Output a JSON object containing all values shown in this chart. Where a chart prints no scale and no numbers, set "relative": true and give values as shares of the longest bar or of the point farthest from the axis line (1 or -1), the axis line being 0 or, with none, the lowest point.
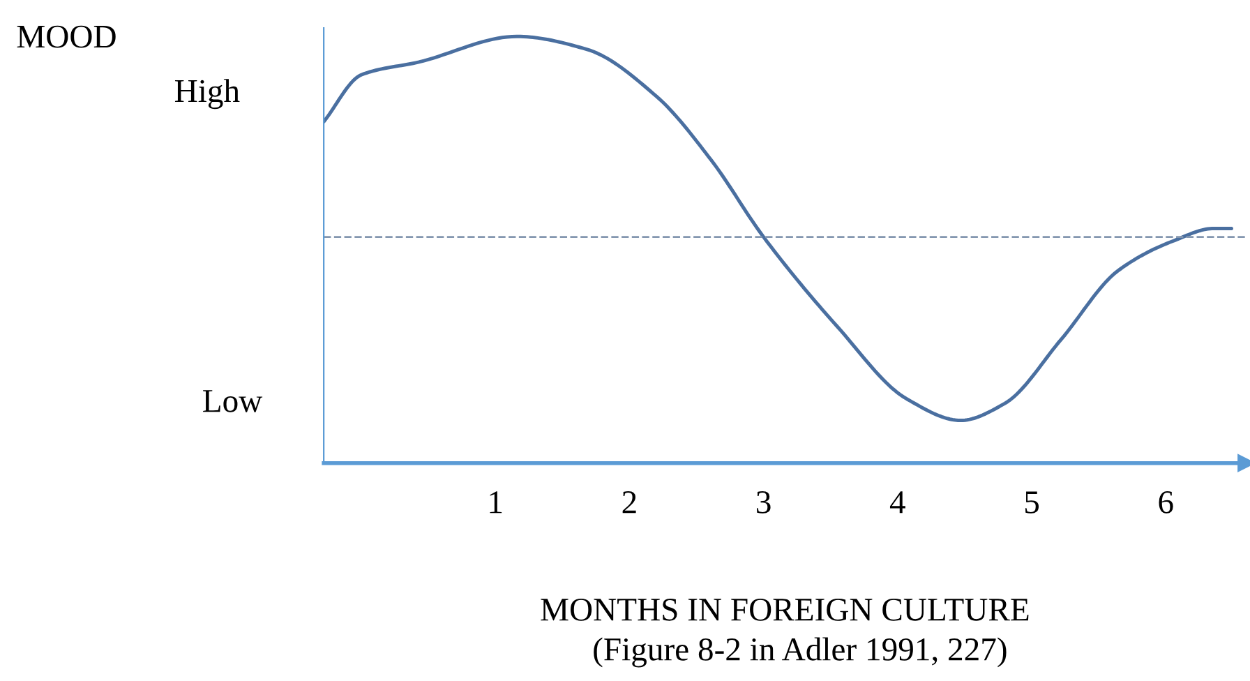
{
  "chart_data": {
    "type": "line",
    "xlabel": "MONTHS IN FOREIGN CULTURE",
    "annotations": [
      "MOOD",
      "High",
      "Low",
      "(Figure 8-2 in Adler 1991, 227)"
    ],
    "relative": true,
    "series": [
      {
        "color": "#4a6fa0",
        "x": [
          -0.28,
          0.0,
          0.43,
          1.16,
          1.68,
          2.2,
          2.61,
          3.0,
          3.55,
          4.07,
          4.47,
          4.8,
          5.22,
          5.64,
          6.05,
          6.36,
          6.49
        ],
        "values": [
          0.8,
          0.91,
          0.94,
          1,
          0.97,
          0.86,
          0.71,
          0.53,
          0.32,
          0.15,
          0.1,
          0.14,
          0.29,
          0.45,
          0.52,
          0.55,
          0.55
        ]
      }
    ],
    "xlim": [
      -0.28,
      6.6
    ],
    "xticks": [
      1,
      2,
      3,
      4,
      5,
      6
    ],
    "ref_lines": [
      {
        "axis": "y",
        "value": 0.53,
        "color": "#8497b0",
        "line_style": "dashed"
      }
    ],
    "marker": "none",
    "line_style": "solid",
    "grid": false,
    "legend": false
  }
}
